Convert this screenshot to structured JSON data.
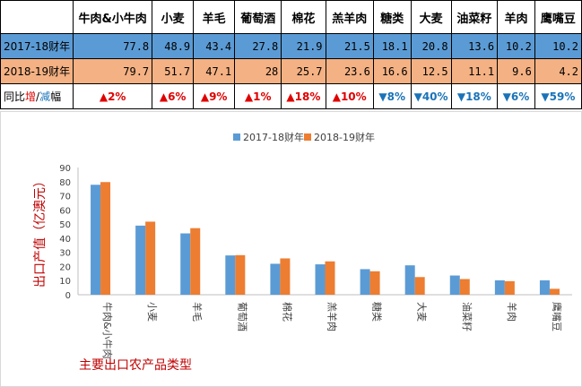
{
  "table": {
    "headers": [
      "牛肉&小牛肉",
      "小麦",
      "羊毛",
      "葡萄酒",
      "棉花",
      "羔羊肉",
      "糖类",
      "大麦",
      "油菜籽",
      "羊肉",
      "鹰嘴豆"
    ],
    "rows": [
      {
        "label": "2017-18财年",
        "bg": "#5b9bd5",
        "values": [
          "77.8",
          "48.9",
          "43.4",
          "27.8",
          "21.9",
          "21.5",
          "18.1",
          "20.8",
          "13.6",
          "10.2",
          "10.2"
        ]
      },
      {
        "label": "2018-19财年",
        "bg": "#f4b183",
        "values": [
          "79.7",
          "51.7",
          "47.1",
          "28",
          "25.7",
          "23.6",
          "16.6",
          "12.5",
          "11.1",
          "9.6",
          "4.2"
        ]
      }
    ],
    "change_label_parts": [
      "同比",
      "增",
      "/",
      "减",
      "幅"
    ],
    "changes": [
      {
        "arrow": "▲",
        "text": "2%",
        "dir": "up"
      },
      {
        "arrow": "▲",
        "text": "6%",
        "dir": "up"
      },
      {
        "arrow": "▲",
        "text": "9%",
        "dir": "up"
      },
      {
        "arrow": "▲",
        "text": "1%",
        "dir": "up"
      },
      {
        "arrow": "▲",
        "text": "18%",
        "dir": "up"
      },
      {
        "arrow": "▲",
        "text": "10%",
        "dir": "up"
      },
      {
        "arrow": "▼",
        "text": "8%",
        "dir": "down"
      },
      {
        "arrow": "▼",
        "text": "40%",
        "dir": "down"
      },
      {
        "arrow": "▼",
        "text": "18%",
        "dir": "down"
      },
      {
        "arrow": "▼",
        "text": "6%",
        "dir": "down"
      },
      {
        "arrow": "▼",
        "text": "59%",
        "dir": "down"
      }
    ]
  },
  "chart_data": {
    "type": "bar",
    "categories": [
      "牛肉&小牛肉",
      "小麦",
      "羊毛",
      "葡萄酒",
      "棉花",
      "羔羊肉",
      "糖类",
      "大麦",
      "油菜籽",
      "羊肉",
      "鹰嘴豆"
    ],
    "series": [
      {
        "name": "2017-18财年",
        "color": "#5b9bd5",
        "values": [
          77.8,
          48.9,
          43.4,
          27.8,
          21.9,
          21.5,
          18.1,
          20.8,
          13.6,
          10.2,
          10.2
        ]
      },
      {
        "name": "2018-19财年",
        "color": "#ed7d31",
        "values": [
          79.7,
          51.7,
          47.1,
          28,
          25.7,
          23.6,
          16.6,
          12.5,
          11.1,
          9.6,
          4.2
        ]
      }
    ],
    "ylabel": "出口产值（亿澳元）",
    "xlabel": "主要出口农产品类型",
    "ylim": [
      0,
      90
    ],
    "yticks": [
      0,
      10,
      20,
      30,
      40,
      50,
      60,
      70,
      80,
      90
    ],
    "legend_position": "top-center",
    "grid": false,
    "axis_title_color": "#c00000"
  }
}
